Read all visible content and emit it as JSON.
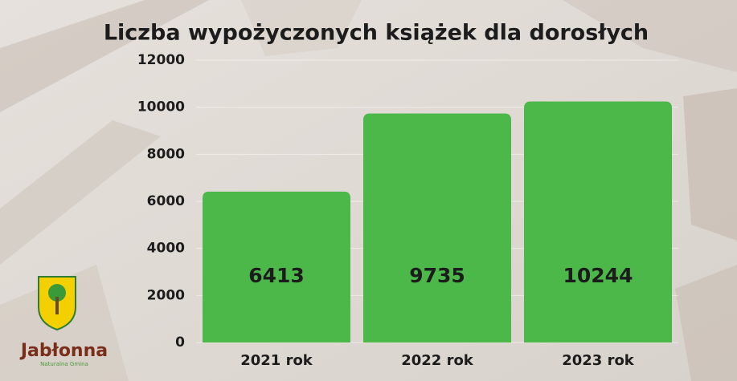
{
  "chart_data": {
    "type": "bar",
    "title": "Liczba wypożyczonych książek dla dorosłych",
    "categories": [
      "2021 rok",
      "2022 rok",
      "2023 rok"
    ],
    "values": [
      6413,
      9735,
      10244
    ],
    "color": "#4cb84a",
    "ylim": [
      0,
      12000
    ],
    "yticks": [
      0,
      2000,
      4000,
      6000,
      8000,
      10000,
      12000
    ],
    "grid": true
  },
  "logo": {
    "name": "Jabłonna",
    "tagline": "Naturalna Gmina"
  }
}
